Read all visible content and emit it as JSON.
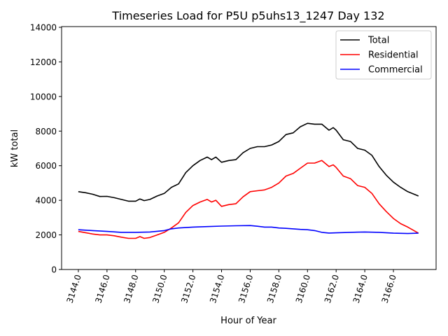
{
  "chart_data": {
    "type": "line",
    "title": "Timeseries Load for P5U p5uhs13_1247  Day 132",
    "xlabel": "Hour of Year",
    "ylabel": "kW total",
    "xlim": [
      3142.83,
      3168.98
    ],
    "ylim": [
      0,
      14040
    ],
    "xticks": [
      3144,
      3146,
      3148,
      3150,
      3152,
      3154,
      3156,
      3158,
      3160,
      3162,
      3164,
      3166
    ],
    "xtick_labels": [
      "3144.0",
      "3146.0",
      "3148.0",
      "3150.0",
      "3152.0",
      "3154.0",
      "3156.0",
      "3158.0",
      "3160.0",
      "3162.0",
      "3164.0",
      "3166.0"
    ],
    "yticks": [
      0,
      2000,
      4000,
      6000,
      8000,
      10000,
      12000,
      14000
    ],
    "ytick_labels": [
      "0",
      "2000",
      "4000",
      "6000",
      "8000",
      "10000",
      "12000",
      "14000"
    ],
    "grid": false,
    "legend_position": "top-right",
    "series": [
      {
        "name": "Total",
        "color": "#000000",
        "points": [
          [
            3144,
            4500
          ],
          [
            3144.5,
            4440
          ],
          [
            3145,
            4350
          ],
          [
            3145.5,
            4220
          ],
          [
            3146,
            4230
          ],
          [
            3146.5,
            4150
          ],
          [
            3147,
            4050
          ],
          [
            3147.5,
            3950
          ],
          [
            3148,
            3950
          ],
          [
            3148.3,
            4080
          ],
          [
            3148.6,
            3980
          ],
          [
            3149,
            4050
          ],
          [
            3149.5,
            4250
          ],
          [
            3150,
            4400
          ],
          [
            3150.5,
            4750
          ],
          [
            3151,
            4950
          ],
          [
            3151.5,
            5600
          ],
          [
            3152,
            6000
          ],
          [
            3152.5,
            6300
          ],
          [
            3153,
            6500
          ],
          [
            3153.3,
            6350
          ],
          [
            3153.6,
            6500
          ],
          [
            3154,
            6200
          ],
          [
            3154.5,
            6300
          ],
          [
            3155,
            6350
          ],
          [
            3155.5,
            6750
          ],
          [
            3156,
            7000
          ],
          [
            3156.5,
            7100
          ],
          [
            3157,
            7100
          ],
          [
            3157.5,
            7200
          ],
          [
            3158,
            7400
          ],
          [
            3158.5,
            7800
          ],
          [
            3159,
            7900
          ],
          [
            3159.5,
            8250
          ],
          [
            3160,
            8450
          ],
          [
            3160.5,
            8400
          ],
          [
            3161,
            8400
          ],
          [
            3161.5,
            8050
          ],
          [
            3161.8,
            8200
          ],
          [
            3162,
            8050
          ],
          [
            3162.5,
            7500
          ],
          [
            3163,
            7400
          ],
          [
            3163.5,
            7000
          ],
          [
            3164,
            6900
          ],
          [
            3164.5,
            6600
          ],
          [
            3165,
            5950
          ],
          [
            3165.5,
            5450
          ],
          [
            3166,
            5050
          ],
          [
            3166.5,
            4750
          ],
          [
            3167,
            4500
          ],
          [
            3167.75,
            4250
          ]
        ]
      },
      {
        "name": "Residential",
        "color": "#ff0000",
        "points": [
          [
            3144,
            2200
          ],
          [
            3144.5,
            2130
          ],
          [
            3145,
            2050
          ],
          [
            3145.5,
            2000
          ],
          [
            3146,
            2000
          ],
          [
            3146.5,
            1950
          ],
          [
            3147,
            1870
          ],
          [
            3147.5,
            1800
          ],
          [
            3148,
            1800
          ],
          [
            3148.3,
            1900
          ],
          [
            3148.6,
            1800
          ],
          [
            3149,
            1850
          ],
          [
            3149.5,
            2000
          ],
          [
            3150,
            2150
          ],
          [
            3150.5,
            2400
          ],
          [
            3151,
            2700
          ],
          [
            3151.5,
            3300
          ],
          [
            3152,
            3700
          ],
          [
            3152.5,
            3900
          ],
          [
            3153,
            4050
          ],
          [
            3153.3,
            3900
          ],
          [
            3153.6,
            4000
          ],
          [
            3154,
            3650
          ],
          [
            3154.5,
            3750
          ],
          [
            3155,
            3800
          ],
          [
            3155.5,
            4200
          ],
          [
            3156,
            4500
          ],
          [
            3156.5,
            4550
          ],
          [
            3157,
            4600
          ],
          [
            3157.5,
            4750
          ],
          [
            3158,
            5000
          ],
          [
            3158.5,
            5400
          ],
          [
            3159,
            5550
          ],
          [
            3159.5,
            5850
          ],
          [
            3160,
            6150
          ],
          [
            3160.5,
            6150
          ],
          [
            3161,
            6300
          ],
          [
            3161.5,
            5950
          ],
          [
            3161.8,
            6050
          ],
          [
            3162,
            5900
          ],
          [
            3162.5,
            5400
          ],
          [
            3163,
            5250
          ],
          [
            3163.5,
            4850
          ],
          [
            3164,
            4750
          ],
          [
            3164.5,
            4400
          ],
          [
            3165,
            3800
          ],
          [
            3165.5,
            3350
          ],
          [
            3166,
            2950
          ],
          [
            3166.5,
            2650
          ],
          [
            3167,
            2450
          ],
          [
            3167.75,
            2100
          ]
        ]
      },
      {
        "name": "Commercial",
        "color": "#0000ff",
        "points": [
          [
            3144,
            2300
          ],
          [
            3145,
            2250
          ],
          [
            3146,
            2200
          ],
          [
            3147,
            2150
          ],
          [
            3148,
            2150
          ],
          [
            3149,
            2170
          ],
          [
            3150,
            2250
          ],
          [
            3150.5,
            2350
          ],
          [
            3151,
            2400
          ],
          [
            3152,
            2450
          ],
          [
            3153,
            2480
          ],
          [
            3154,
            2510
          ],
          [
            3155,
            2530
          ],
          [
            3156,
            2540
          ],
          [
            3156.5,
            2500
          ],
          [
            3157,
            2450
          ],
          [
            3157.5,
            2450
          ],
          [
            3158,
            2400
          ],
          [
            3158.5,
            2380
          ],
          [
            3159,
            2350
          ],
          [
            3159.5,
            2320
          ],
          [
            3160,
            2300
          ],
          [
            3160.5,
            2250
          ],
          [
            3161,
            2150
          ],
          [
            3161.5,
            2110
          ],
          [
            3162,
            2120
          ],
          [
            3163,
            2150
          ],
          [
            3164,
            2170
          ],
          [
            3165,
            2150
          ],
          [
            3166,
            2100
          ],
          [
            3167,
            2080
          ],
          [
            3167.75,
            2100
          ]
        ]
      }
    ]
  }
}
